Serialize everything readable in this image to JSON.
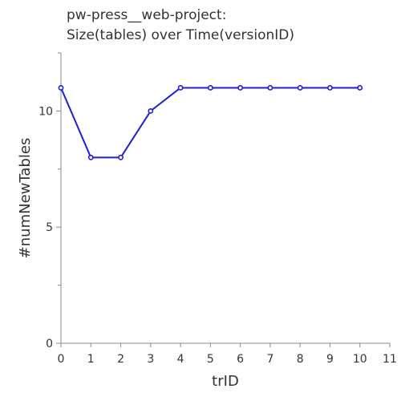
{
  "chart_data": {
    "type": "line",
    "title_lines": [
      "pw-press__web-project:",
      "Size(tables) over Time(versionID)"
    ],
    "xlabel": "trID",
    "ylabel": "#numNewTables",
    "xlim": [
      0,
      11
    ],
    "ylim": [
      0,
      12.5
    ],
    "x_ticks": [
      0,
      1,
      2,
      3,
      4,
      5,
      6,
      7,
      8,
      9,
      10,
      11
    ],
    "y_ticks": [
      0,
      5,
      10
    ],
    "grid": false,
    "legend": "none",
    "series": [
      {
        "x": [
          0,
          1,
          2,
          3,
          4,
          5,
          6,
          7,
          8,
          9,
          10
        ],
        "y": [
          11,
          8,
          8,
          10,
          11,
          11,
          11,
          11,
          11,
          11,
          11
        ],
        "color": "#1f1fd6",
        "marker": "circle"
      }
    ]
  }
}
